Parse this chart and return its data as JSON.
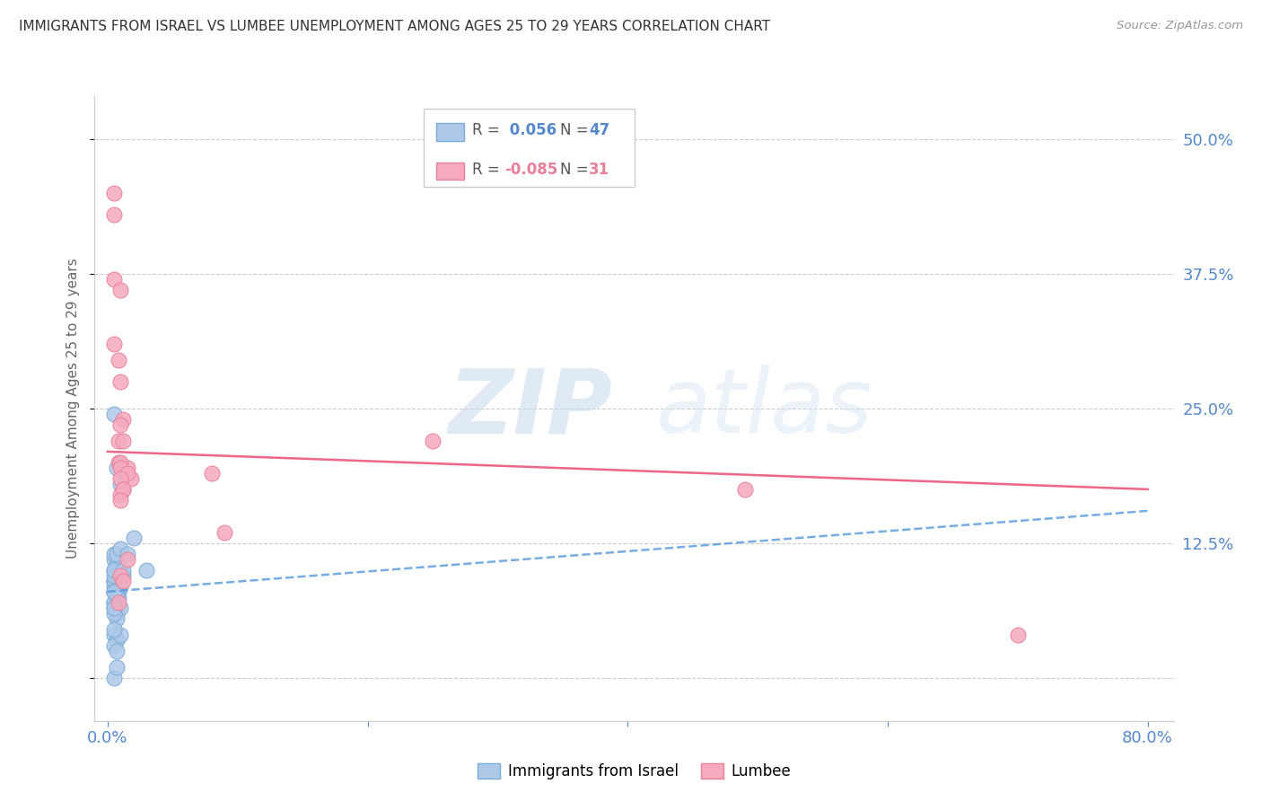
{
  "title": "IMMIGRANTS FROM ISRAEL VS LUMBEE UNEMPLOYMENT AMONG AGES 25 TO 29 YEARS CORRELATION CHART",
  "source": "Source: ZipAtlas.com",
  "ylabel": "Unemployment Among Ages 25 to 29 years",
  "xlim": [
    -0.01,
    0.82
  ],
  "ylim": [
    -0.04,
    0.54
  ],
  "xtick_positions": [
    0.0,
    0.2,
    0.4,
    0.6,
    0.8
  ],
  "xtick_labels": [
    "0.0%",
    "",
    "",
    "",
    "80.0%"
  ],
  "ytick_positions": [
    0.0,
    0.125,
    0.25,
    0.375,
    0.5
  ],
  "ytick_labels_right": [
    "",
    "12.5%",
    "25.0%",
    "37.5%",
    "50.0%"
  ],
  "legend_r1": "0.056",
  "legend_n1": "47",
  "legend_r2": "-0.085",
  "legend_n2": "31",
  "legend_label1": "Immigrants from Israel",
  "legend_label2": "Lumbee",
  "blue_scatter_color": "#aec8e8",
  "blue_edge_color": "#7aacd6",
  "pink_scatter_color": "#f5aabe",
  "pink_edge_color": "#e8809a",
  "blue_line_color": "#5599dd",
  "pink_line_color": "#ee6688",
  "axis_color": "#5588cc",
  "grid_color": "#cccccc",
  "israel_x": [
    0.005,
    0.005,
    0.005,
    0.01,
    0.005,
    0.008,
    0.005,
    0.005,
    0.01,
    0.008,
    0.005,
    0.012,
    0.007,
    0.005,
    0.005,
    0.01,
    0.008,
    0.005,
    0.005,
    0.007,
    0.005,
    0.007,
    0.01,
    0.005,
    0.005,
    0.007,
    0.007,
    0.005,
    0.01,
    0.007,
    0.005,
    0.007,
    0.005,
    0.007,
    0.012,
    0.005,
    0.01,
    0.005,
    0.007,
    0.005,
    0.007,
    0.01,
    0.005,
    0.005,
    0.02,
    0.015,
    0.03
  ],
  "israel_y": [
    0.1,
    0.09,
    0.08,
    0.1,
    0.11,
    0.095,
    0.085,
    0.09,
    0.1,
    0.08,
    0.07,
    0.095,
    0.105,
    0.09,
    0.08,
    0.085,
    0.075,
    0.095,
    0.1,
    0.08,
    0.245,
    0.195,
    0.18,
    0.115,
    0.065,
    0.06,
    0.075,
    0.07,
    0.065,
    0.055,
    0.04,
    0.035,
    0.03,
    0.025,
    0.1,
    0.0,
    0.04,
    0.045,
    0.01,
    0.08,
    0.115,
    0.12,
    0.06,
    0.065,
    0.13,
    0.115,
    0.1
  ],
  "lumbee_x": [
    0.005,
    0.005,
    0.005,
    0.01,
    0.005,
    0.008,
    0.01,
    0.012,
    0.01,
    0.008,
    0.012,
    0.008,
    0.015,
    0.018,
    0.01,
    0.012,
    0.01,
    0.01,
    0.015,
    0.01,
    0.08,
    0.09,
    0.012,
    0.01,
    0.015,
    0.01,
    0.012,
    0.25,
    0.49,
    0.7,
    0.008
  ],
  "lumbee_y": [
    0.45,
    0.43,
    0.37,
    0.36,
    0.31,
    0.295,
    0.275,
    0.24,
    0.235,
    0.22,
    0.22,
    0.2,
    0.195,
    0.185,
    0.2,
    0.175,
    0.195,
    0.17,
    0.19,
    0.185,
    0.19,
    0.135,
    0.175,
    0.165,
    0.11,
    0.095,
    0.09,
    0.22,
    0.175,
    0.04,
    0.07
  ],
  "israel_trend_x": [
    0.0,
    0.8
  ],
  "israel_trend_y": [
    0.08,
    0.155
  ],
  "lumbee_trend_x": [
    0.0,
    0.8
  ],
  "lumbee_trend_y": [
    0.21,
    0.175
  ]
}
